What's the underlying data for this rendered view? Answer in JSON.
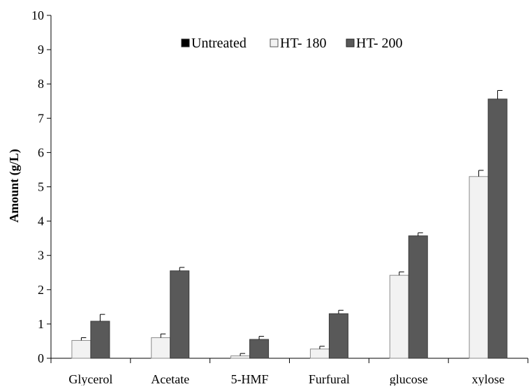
{
  "chart_data": {
    "type": "bar",
    "title": "",
    "xlabel": "",
    "ylabel": "Amount (g/L)",
    "ylim": [
      0,
      10
    ],
    "yticks": [
      "0",
      "1",
      "2",
      "3",
      "4",
      "5",
      "6",
      "7",
      "8",
      "9",
      "10"
    ],
    "grid": false,
    "legend_position": "top-center",
    "categories": [
      "Glycerol",
      "Acetate",
      "5-HMF",
      "Furfural",
      "glucose",
      "xylose"
    ],
    "series": [
      {
        "name": "Untreated",
        "color": "#000000",
        "values": [
          0,
          0,
          0,
          0,
          0,
          0
        ],
        "errors": [
          0,
          0,
          0,
          0,
          0,
          0
        ]
      },
      {
        "name": "HT- 180",
        "color": "#f2f2f2",
        "values": [
          0.52,
          0.6,
          0.07,
          0.27,
          2.42,
          5.3
        ],
        "errors": [
          0.08,
          0.11,
          0.07,
          0.08,
          0.1,
          0.18
        ]
      },
      {
        "name": "HT- 200",
        "color": "#595959",
        "values": [
          1.08,
          2.55,
          0.55,
          1.3,
          3.57,
          7.56
        ],
        "errors": [
          0.2,
          0.1,
          0.09,
          0.1,
          0.09,
          0.25
        ]
      }
    ]
  }
}
